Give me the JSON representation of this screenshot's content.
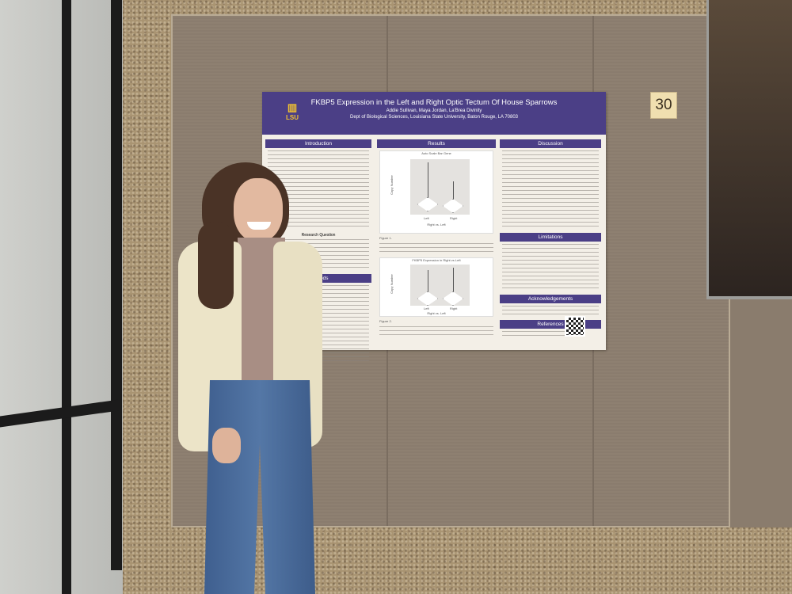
{
  "poster": {
    "logo": "LSU",
    "title": "FKBP5 Expression in the Left and Right Optic Tectum Of House Sparrows",
    "authors": "Addie Sullivan, Maya Jordan, La'Brea Divinity",
    "affiliation": "Dept of Biological Sciences, Louisiana State University, Baton Rouge, LA 70803",
    "sections": {
      "introduction": "Introduction",
      "research_question": "Research Question",
      "methods": "Methods",
      "results": "Results",
      "discussion": "Discussion",
      "limitations": "Limitations",
      "acknowledgements": "Acknowledgements",
      "references": "References"
    },
    "charts": [
      {
        "title": "Auto Scale Bar Gene",
        "xlabel": "Right vs. Left",
        "ylabel": "Copy Number",
        "categories": [
          "Left",
          "Right"
        ],
        "figure": "Figure 1."
      },
      {
        "title": "FKBP5 Expression in Right vs Left",
        "xlabel": "Right vs. Left",
        "ylabel": "Copy Number",
        "categories": [
          "Left",
          "Right"
        ],
        "figure": "Figure 2."
      }
    ],
    "accent_color": "#4b3f86"
  },
  "board_number": "30"
}
